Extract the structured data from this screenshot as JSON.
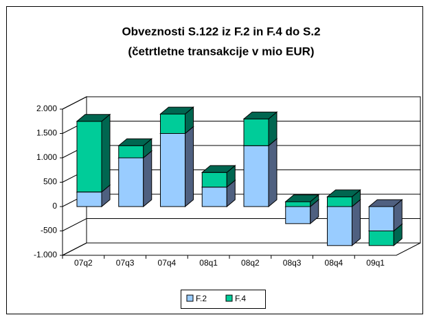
{
  "chart_data": {
    "type": "bar3d_stacked",
    "title": [
      "Obveznosti S.122 iz F.2 in F.4 do S.2",
      "(četrtletne transakcije v mio EUR)"
    ],
    "categories": [
      "07q2",
      "07q3",
      "07q4",
      "08q1",
      "08q2",
      "08q3",
      "08q4",
      "09q1"
    ],
    "series": [
      {
        "name": "F.2",
        "color": "#99ccff",
        "side": "#4f6080",
        "values": [
          300,
          1000,
          1500,
          400,
          1250,
          -350,
          -800,
          -500
        ]
      },
      {
        "name": "F.4",
        "color": "#00cc99",
        "side": "#006650",
        "values": [
          1450,
          250,
          400,
          300,
          550,
          100,
          200,
          -300
        ]
      }
    ],
    "ylim": [
      -1000,
      2000
    ],
    "yticks": [
      {
        "value": -1000,
        "label": "-1.000"
      },
      -500,
      0,
      500,
      {
        "value": 1000,
        "label": "1.000"
      },
      {
        "value": 1500,
        "label": "1.500"
      },
      {
        "value": 2000,
        "label": "2.000"
      }
    ],
    "grid": true,
    "legend": "bottom"
  }
}
